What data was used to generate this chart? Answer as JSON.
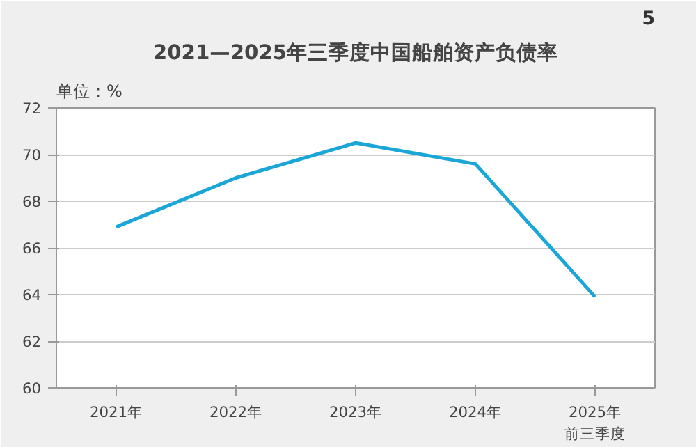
{
  "chart_data": {
    "type": "line",
    "title": "2021—2025年三季度中国船舶资产负债率",
    "ylabel": "单位：%",
    "annotations": [
      "5"
    ],
    "categories": [
      "2021年",
      "2022年",
      "2023年",
      "2024年",
      "2025年前三季度"
    ],
    "series": [
      {
        "color": "#1ba6d8",
        "values": [
          66.9,
          69.0,
          70.5,
          69.6,
          63.9
        ]
      }
    ],
    "ylim": [
      60,
      72
    ],
    "yticks": [
      60,
      62,
      64,
      66,
      68,
      70,
      72
    ],
    "grid": "y",
    "marker": "none",
    "line_style": "solid"
  }
}
